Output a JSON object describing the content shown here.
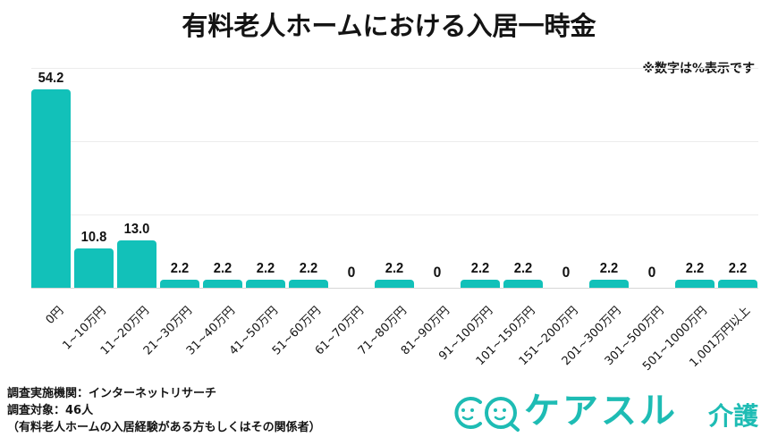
{
  "title": "有料老人ホームにおける入居一時金",
  "note": "※数字は%表示です",
  "colors": {
    "bar": "#12c1b9",
    "logo": "#1ebcb4",
    "text": "#141414",
    "grid": "#ececec"
  },
  "chart_data": {
    "type": "bar",
    "title": "有料老人ホームにおける入居一時金",
    "xlabel": "",
    "ylabel": "",
    "unit": "%",
    "ylim": [
      0,
      60
    ],
    "yticks_gridlines": [
      0,
      20,
      40,
      60
    ],
    "grid": true,
    "legend": null,
    "categories": [
      "0円",
      "1~10万円",
      "11~20万円",
      "21~30万円",
      "31~40万円",
      "41~50万円",
      "51~60万円",
      "61~70万円",
      "71~80万円",
      "81~90万円",
      "91~100万円",
      "101~150万円",
      "151~200万円",
      "201~300万円",
      "301~500万円",
      "501~1000万円",
      "1,001万円以上"
    ],
    "values": [
      54.2,
      10.8,
      13.0,
      2.2,
      2.2,
      2.2,
      2.2,
      0,
      2.2,
      0,
      2.2,
      2.2,
      0,
      2.2,
      0,
      2.2,
      2.2
    ],
    "value_labels": [
      "54.2",
      "10.8",
      "13.0",
      "2.2",
      "2.2",
      "2.2",
      "2.2",
      "0",
      "2.2",
      "0",
      "2.2",
      "2.2",
      "0",
      "2.2",
      "0",
      "2.2",
      "2.2"
    ],
    "annotations": [
      "※数字は%表示です"
    ]
  },
  "footer": {
    "line1": "調査実施機関：インターネットリサーチ",
    "line2": "調査対象：46人",
    "line3": "（有料老人ホームの入居経験がある方もしくはその関係者）"
  },
  "logo": {
    "main": "ケアスル",
    "sub": "介護"
  }
}
